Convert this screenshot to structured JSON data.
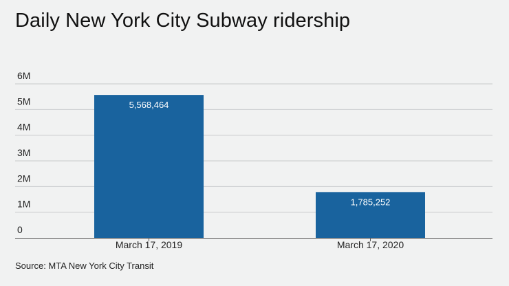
{
  "chart_data": {
    "type": "bar",
    "title": "Daily New York City Subway ridership",
    "categories": [
      "March 17, 2019",
      "March 17, 2020"
    ],
    "values": [
      5568464,
      1785252
    ],
    "data_labels": [
      "5,568,464",
      "1,785,252"
    ],
    "xlabel": "",
    "ylabel": "",
    "ylim": [
      0,
      6000000
    ],
    "yticks": [
      0,
      1000000,
      2000000,
      3000000,
      4000000,
      5000000,
      6000000
    ],
    "ytick_labels": [
      "0",
      "1M",
      "2M",
      "3M",
      "4M",
      "5M",
      "6M"
    ],
    "grid": true,
    "legend": "none",
    "bar_color": "#19639e",
    "source": "Source: MTA New York City Transit"
  }
}
